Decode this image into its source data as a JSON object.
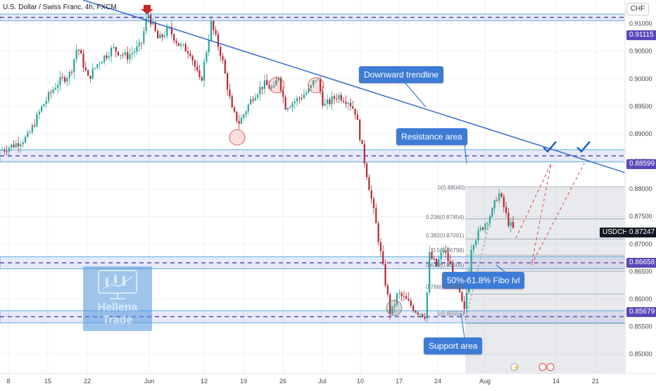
{
  "header": {
    "title": "U.S. Dollar / Swiss Franc, 4h, FXCM",
    "currency": "CHF"
  },
  "chart_data": {
    "type": "candlestick",
    "symbol": "USDCHF",
    "last_price": "0.87247",
    "y_axis": {
      "range": [
        0.8465,
        0.9143
      ],
      "ticks": [
        "0.91000",
        "0.90500",
        "0.90000",
        "0.89500",
        "0.89000",
        "0.88500",
        "0.88000",
        "0.87500",
        "0.87000",
        "0.86500",
        "0.86000",
        "0.85500",
        "0.85000"
      ]
    },
    "x_axis": {
      "ticks": [
        "8",
        "15",
        "22",
        "Jun",
        "12",
        "19",
        "26",
        "Jul",
        "10",
        "17",
        "24",
        "Aug",
        "14",
        "21"
      ]
    },
    "price_levels": [
      {
        "value": "0.91115",
        "label": "0.91115"
      },
      {
        "value": "0.88599",
        "label": "0.88599"
      },
      {
        "value": "0.86658",
        "label": "0.86658"
      },
      {
        "value": "0.85679",
        "label": "0.85679"
      }
    ],
    "fibonacci": [
      {
        "ratio": "0",
        "price": "0.88040"
      },
      {
        "ratio": "0.236",
        "price": "0.87454"
      },
      {
        "ratio": "0.382",
        "price": "0.87091"
      },
      {
        "ratio": "0.5",
        "price": "0.86798"
      },
      {
        "ratio": "0.618",
        "price": "0.86505"
      },
      {
        "ratio": "0.786",
        "price": "0.86088"
      },
      {
        "ratio": "1",
        "price": "0.85555"
      }
    ],
    "annotations": [
      {
        "text": "Downward trendline"
      },
      {
        "text": "Resistance area"
      },
      {
        "text": "50%-61.8% Fibo lvl"
      },
      {
        "text": "Support area"
      }
    ],
    "watermark": {
      "line1": "Hellena",
      "line2": "Trade"
    },
    "colors": {
      "up": "#26a69a",
      "down": "#b22833",
      "zone": "#5b48b8",
      "trendline": "#2962c9",
      "callout": "#3d7bd6"
    }
  }
}
